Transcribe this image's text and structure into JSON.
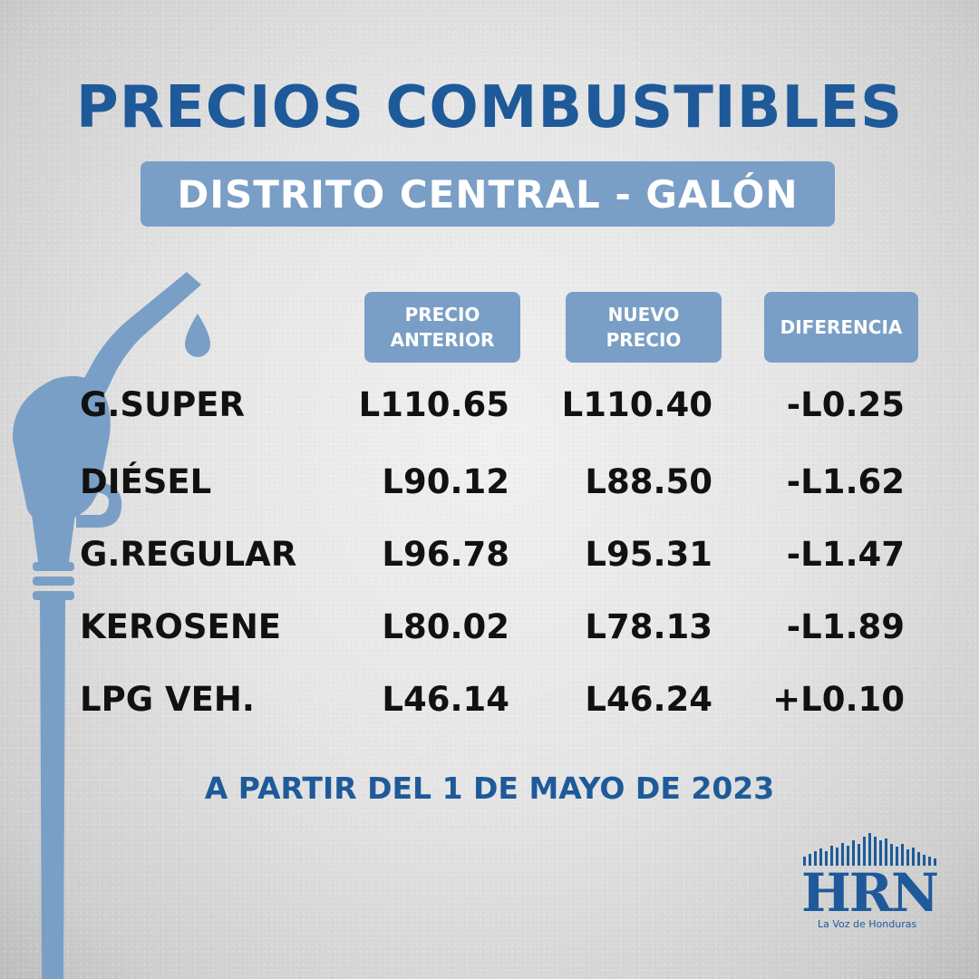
{
  "title": "PRECIOS COMBUSTIBLES",
  "subtitle": "DISTRITO CENTRAL - GALÓN",
  "columns": {
    "previous": "PRECIO\nANTERIOR",
    "new": "NUEVO\nPRECIO",
    "difference": "DIFERENCIA"
  },
  "rows": [
    {
      "name": "G.SUPER",
      "previous": "L110.65",
      "new": "L110.40",
      "difference": "-L0.25"
    },
    {
      "name": "DIÉSEL",
      "previous": "L90.12",
      "new": "L88.50",
      "difference": "-L1.62"
    },
    {
      "name": "G.REGULAR",
      "previous": "L96.78",
      "new": "L95.31",
      "difference": "-L1.47"
    },
    {
      "name": "KEROSENE",
      "previous": "L80.02",
      "new": "L78.13",
      "difference": "-L1.89"
    },
    {
      "name": "LPG VEH.",
      "previous": "L46.14",
      "new": "L46.24",
      "difference": "+L0.10"
    }
  ],
  "footer": "A PARTIR DEL 1 DE MAYO DE 2023",
  "logo": {
    "name": "HRN",
    "tagline": "La Voz de Honduras",
    "color": "#1e5a9a"
  },
  "colors": {
    "brand_blue": "#1e5a9a",
    "box_blue": "#7a9fc6",
    "pump_blue": "#7a9fc6"
  },
  "icons": [
    "fuel-nozzle-icon",
    "fuel-drop-icon"
  ]
}
